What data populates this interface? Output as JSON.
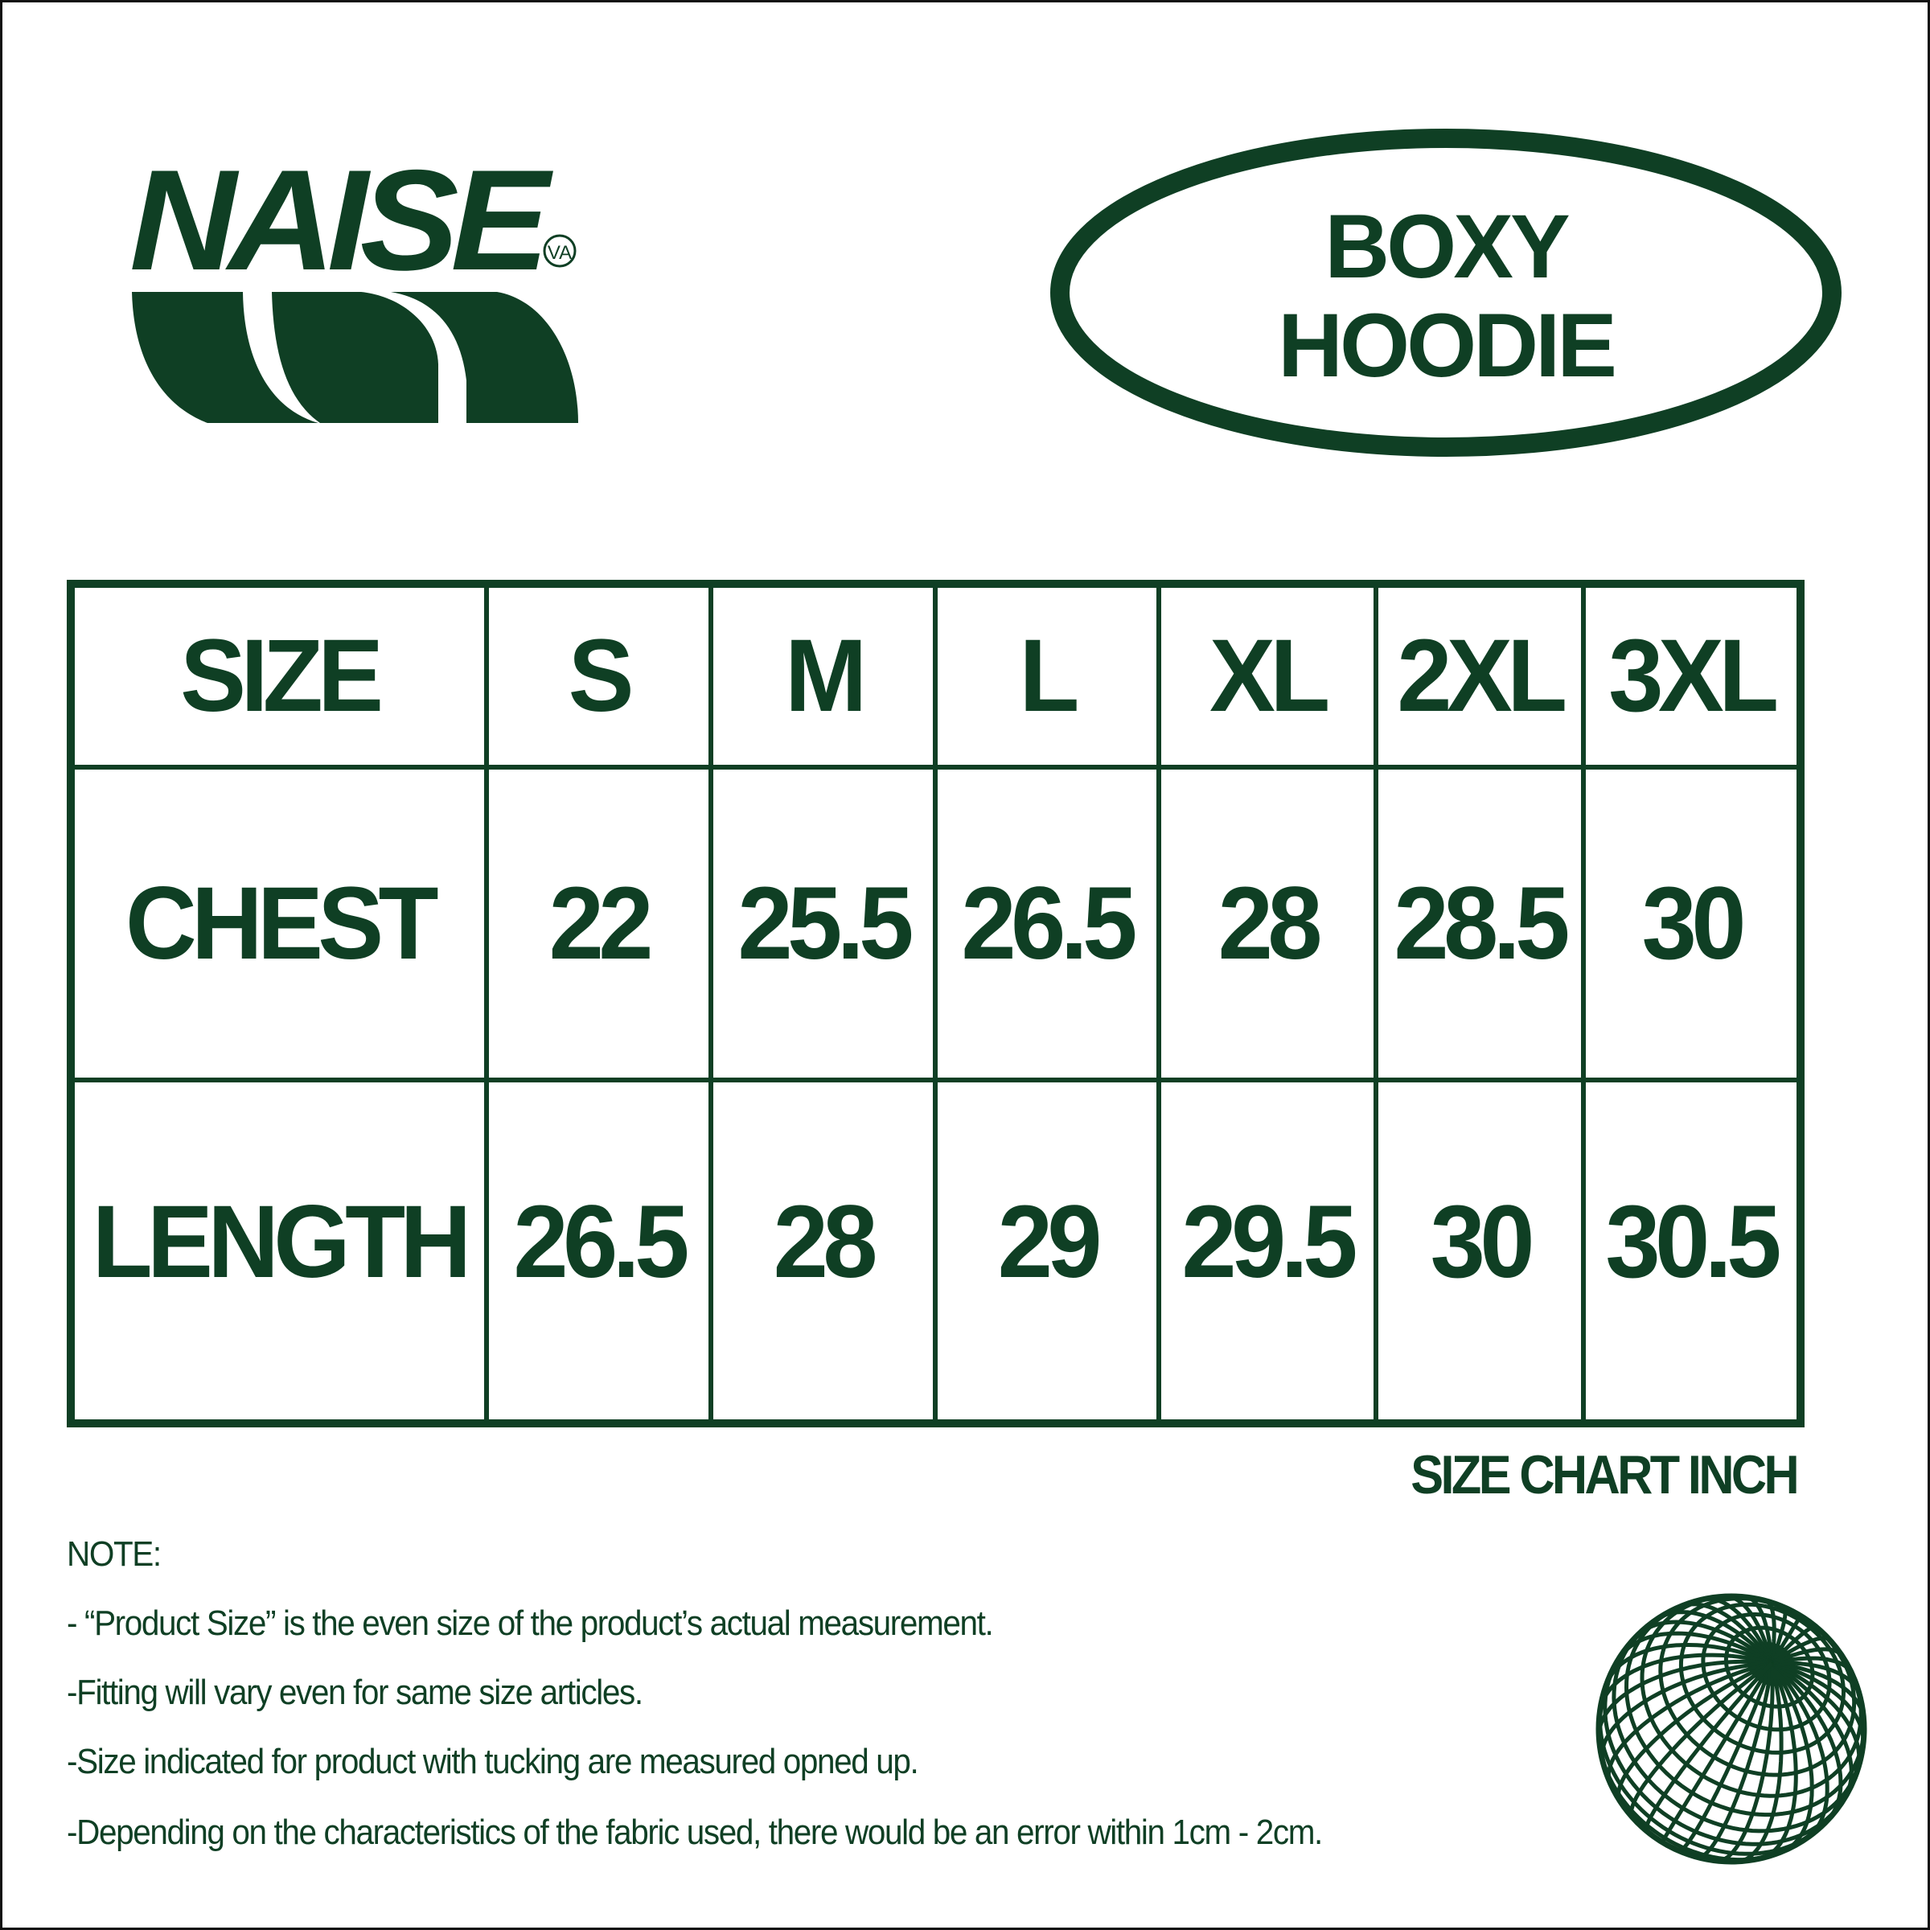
{
  "brand": {
    "logo_text": "NAISE",
    "logo_badge": "VA",
    "color": "#0f3f24"
  },
  "product": {
    "title_line1": "BOXY",
    "title_line2": "HOODIE"
  },
  "table": {
    "headers": [
      "SIZE",
      "S",
      "M",
      "L",
      "XL",
      "2XL",
      "3XL"
    ],
    "rows": [
      {
        "label": "CHEST",
        "values": [
          "22",
          "25.5",
          "26.5",
          "28",
          "28.5",
          "30"
        ]
      },
      {
        "label": "LENGTH",
        "values": [
          "26.5",
          "28",
          "29",
          "29.5",
          "30",
          "30.5"
        ]
      }
    ],
    "unit_label": "SIZE CHART INCH"
  },
  "notes": {
    "heading": "NOTE:",
    "items": [
      "- “Product Size”  is the even size of the product’s actual measurement.",
      "-Fitting will vary even for same size articles.",
      "-Size indicated for product with tucking are measured opned up.",
      "-Depending on the characteristics of the fabric used, there would be an error within 1cm - 2cm."
    ]
  },
  "decor": {
    "globe_icon": "wireframe-globe-icon"
  }
}
